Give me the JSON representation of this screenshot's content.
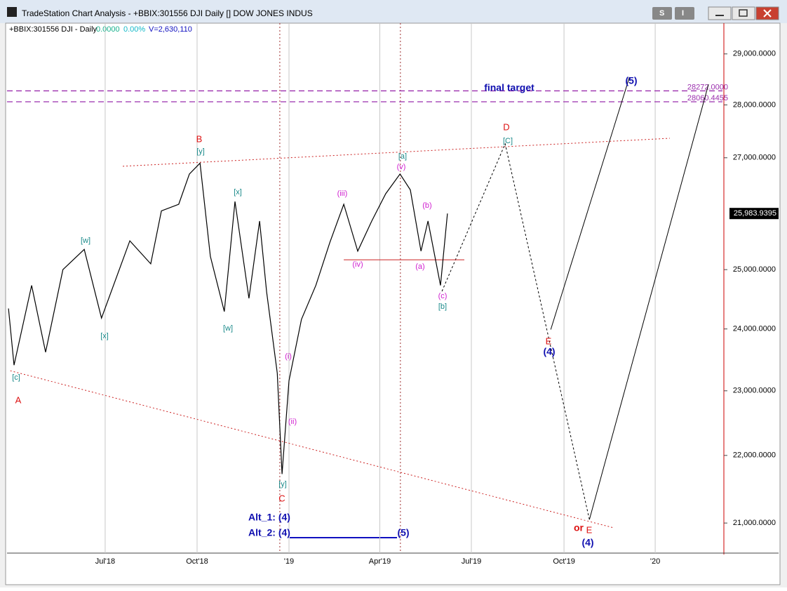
{
  "window": {
    "title": "TradeStation Chart Analysis - +BBIX:301556 DJI Daily [] DOW JONES INDUS",
    "buttons": [
      "S",
      "I"
    ]
  },
  "chart_data": {
    "type": "line",
    "info": {
      "symbol": "+BBIX:301556 DJI - Daily",
      "change": "0.0000",
      "change_pct": "0.00%",
      "volume": "V=2,630,110"
    },
    "x": [
      2018.237,
      2018.252,
      2018.3,
      2018.338,
      2018.385,
      2018.443,
      2018.49,
      2018.567,
      2018.624,
      2018.653,
      2018.7,
      2018.729,
      2018.758,
      2018.786,
      2018.824,
      2018.853,
      2018.891,
      2018.92,
      2018.939,
      2018.968,
      2018.981,
      2019.0,
      2019.034,
      2019.073,
      2019.111,
      2019.149,
      2019.187,
      2019.225,
      2019.263,
      2019.302,
      2019.33,
      2019.359,
      2019.378,
      2019.412,
      2019.431
    ],
    "values": [
      24340,
      23410,
      24730,
      23620,
      25000,
      25350,
      24180,
      25500,
      25100,
      26030,
      26150,
      26700,
      26900,
      25230,
      24290,
      26200,
      24510,
      25850,
      24620,
      23280,
      21720,
      23160,
      24160,
      24730,
      25470,
      26150,
      25320,
      25850,
      26340,
      26700,
      26410,
      25320,
      25850,
      24730,
      25983.9395
    ],
    "color": "#000000",
    "last_price": {
      "value": 25983.9395,
      "label": "25,983.9395"
    },
    "log_scale": true,
    "xlim": [
      2018.233,
      2020.179
    ],
    "ylim": [
      20570,
      29620
    ],
    "xticks": [
      {
        "value": 2018.5,
        "label": "Jul'18"
      },
      {
        "value": 2018.75,
        "label": "Oct'18"
      },
      {
        "value": 2019.0,
        "label": "'19"
      },
      {
        "value": 2019.247,
        "label": "Apr'19"
      },
      {
        "value": 2019.496,
        "label": "Jul'19"
      },
      {
        "value": 2019.748,
        "label": "Oct'19"
      },
      {
        "value": 2019.996,
        "label": "'20"
      }
    ],
    "yticks": [
      {
        "value": 21000,
        "label": "21,000.0000"
      },
      {
        "value": 22000,
        "label": "22,000.0000"
      },
      {
        "value": 23000,
        "label": "23,000.0000"
      },
      {
        "value": 24000,
        "label": "24,000.0000"
      },
      {
        "value": 25000,
        "label": "25,000.0000"
      },
      {
        "value": 27000,
        "label": "27,000.0000"
      },
      {
        "value": 28000,
        "label": "28,000.0000"
      },
      {
        "value": 29000,
        "label": "29,000.0000"
      }
    ],
    "grid": true,
    "levels": [
      {
        "value": 28272,
        "label": "28272.0000",
        "color": "#9b2fae"
      },
      {
        "value": 28060.4455,
        "label": "28060.4455",
        "color": "#9b2fae"
      }
    ],
    "overlays": [
      {
        "x": [
          2019.416,
          2019.588,
          2019.817
        ],
        "values": [
          24630,
          27260,
          21050
        ],
        "color": "#000000",
        "dash": "3,3"
      },
      {
        "x": [
          2019.712,
          2019.926
        ],
        "values": [
          23990,
          28540
        ],
        "color": "#000000",
        "dash": "none"
      },
      {
        "x": [
          2019.817,
          2020.141
        ],
        "values": [
          21050,
          28400
        ],
        "color": "#000000",
        "dash": "none"
      },
      {
        "x": [
          2018.548,
          2020.036
        ],
        "values": [
          26842,
          27364
        ],
        "color": "#cc2222",
        "dash": "2,3"
      },
      {
        "x": [
          2018.242,
          2019.884
        ],
        "values": [
          23320,
          20930
        ],
        "color": "#cc2222",
        "dash": "2,3"
      },
      {
        "x": [
          2019.149,
          2019.477
        ],
        "values": [
          25170,
          25170
        ],
        "color": "#cc2222",
        "dash": "none"
      }
    ],
    "vlines": [
      2018.975,
      2019.303
    ],
    "annotations": [
      {
        "text": "B",
        "color": "#dd1111"
      },
      {
        "text": "[y]",
        "color": "#1a8a8a"
      },
      {
        "text": "[w]",
        "color": "#1a8a8a"
      },
      {
        "text": "[x]",
        "color": "#1a8a8a"
      },
      {
        "text": "[x]",
        "color": "#1a8a8a"
      },
      {
        "text": "[w]",
        "color": "#1a8a8a"
      },
      {
        "text": "[c]",
        "color": "#1a8a8a"
      },
      {
        "text": "A",
        "color": "#dd1111"
      },
      {
        "text": "(i)",
        "color": "#d020d0"
      },
      {
        "text": "(ii)",
        "color": "#d020d0"
      },
      {
        "text": "[y]",
        "color": "#1a8a8a"
      },
      {
        "text": "C",
        "color": "#dd1111"
      },
      {
        "text": "(iii)",
        "color": "#d020d0"
      },
      {
        "text": "(iv)",
        "color": "#d020d0"
      },
      {
        "text": "[a]",
        "color": "#1a8a8a"
      },
      {
        "text": "(v)",
        "color": "#d020d0"
      },
      {
        "text": "(b)",
        "color": "#d020d0"
      },
      {
        "text": "(a)",
        "color": "#d020d0"
      },
      {
        "text": "(c)",
        "color": "#d020d0"
      },
      {
        "text": "[b]",
        "color": "#1a8a8a"
      },
      {
        "text": "D",
        "color": "#dd1111"
      },
      {
        "text": "[C]",
        "color": "#1a8a8a"
      },
      {
        "text": "E",
        "color": "#dd1111"
      },
      {
        "text": "(4)",
        "color": "#1010b0"
      },
      {
        "text": "(5)",
        "color": "#1010b0"
      },
      {
        "text": "final target",
        "color": "#1010b0"
      },
      {
        "text": "or",
        "color": "#dd1111"
      },
      {
        "text": "E",
        "color": "#dd1111"
      },
      {
        "text": "(4)",
        "color": "#1010b0"
      },
      {
        "text": "Alt_1: (4)",
        "color": "#1010b0"
      },
      {
        "text": "Alt_2: (4)",
        "color": "#1010b0"
      },
      {
        "text": "(5)",
        "color": "#1010b0"
      }
    ]
  }
}
